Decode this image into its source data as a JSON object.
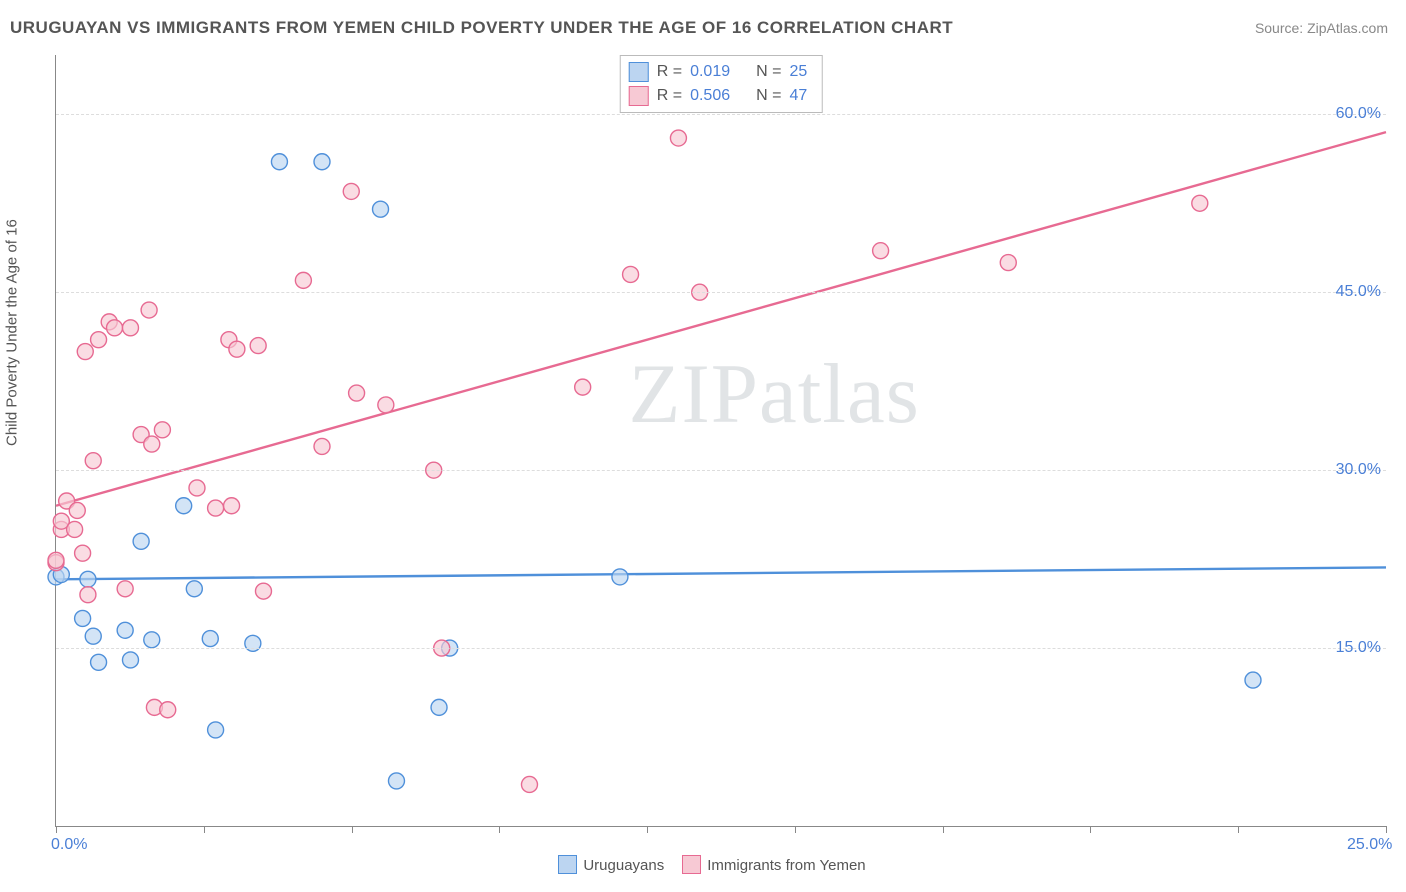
{
  "title": "URUGUAYAN VS IMMIGRANTS FROM YEMEN CHILD POVERTY UNDER THE AGE OF 16 CORRELATION CHART",
  "source_prefix": "Source: ",
  "source_name": "ZipAtlas.com",
  "ylabel": "Child Poverty Under the Age of 16",
  "watermark": "ZIPatlas",
  "chart": {
    "type": "scatter",
    "background_color": "#ffffff",
    "grid_color": "#dddddd",
    "axis_color": "#888888",
    "xlim": [
      0,
      25
    ],
    "ylim": [
      0,
      65
    ],
    "x_ticks": [
      0,
      2.78,
      5.56,
      8.33,
      11.11,
      13.89,
      16.67,
      19.44,
      22.22,
      25
    ],
    "x_tick_labels": {
      "0": "0.0%",
      "25": "25.0%"
    },
    "y_ticks": [
      15,
      30,
      45,
      60
    ],
    "y_tick_labels": [
      "15.0%",
      "30.0%",
      "45.0%",
      "60.0%"
    ],
    "marker_radius": 8,
    "marker_stroke_width": 1.4,
    "trend_line_width": 2.4,
    "series": [
      {
        "id": "uruguayans",
        "label": "Uruguayans",
        "color_fill": "#bcd5f1",
        "color_stroke": "#4f90da",
        "R": "0.019",
        "N": "25",
        "trend": {
          "x1": 0,
          "y1": 20.8,
          "x2": 25,
          "y2": 21.8
        },
        "points": [
          [
            0.0,
            21.0
          ],
          [
            0.1,
            21.2
          ],
          [
            0.5,
            17.5
          ],
          [
            0.6,
            20.8
          ],
          [
            0.7,
            16.0
          ],
          [
            0.8,
            13.8
          ],
          [
            1.3,
            16.5
          ],
          [
            1.4,
            14.0
          ],
          [
            1.8,
            15.7
          ],
          [
            1.6,
            24.0
          ],
          [
            2.4,
            27.0
          ],
          [
            2.6,
            20.0
          ],
          [
            2.9,
            15.8
          ],
          [
            3.0,
            8.1
          ],
          [
            3.7,
            15.4
          ],
          [
            4.2,
            56.0
          ],
          [
            5.0,
            56.0
          ],
          [
            6.1,
            52.0
          ],
          [
            6.4,
            3.8
          ],
          [
            7.2,
            10.0
          ],
          [
            7.4,
            15.0
          ],
          [
            10.6,
            21.0
          ],
          [
            22.5,
            12.3
          ]
        ]
      },
      {
        "id": "yemen",
        "label": "Immigrants from Yemen",
        "color_fill": "#f7c9d4",
        "color_stroke": "#e76a92",
        "R": "0.506",
        "N": "47",
        "trend": {
          "x1": 0,
          "y1": 27.0,
          "x2": 25,
          "y2": 58.5
        },
        "points": [
          [
            0.0,
            22.2
          ],
          [
            0.0,
            22.4
          ],
          [
            0.1,
            25.0
          ],
          [
            0.1,
            25.7
          ],
          [
            0.2,
            27.4
          ],
          [
            0.35,
            25.0
          ],
          [
            0.4,
            26.6
          ],
          [
            0.5,
            23.0
          ],
          [
            0.55,
            40.0
          ],
          [
            0.6,
            19.5
          ],
          [
            0.7,
            30.8
          ],
          [
            0.8,
            41.0
          ],
          [
            1.0,
            42.5
          ],
          [
            1.1,
            42.0
          ],
          [
            1.3,
            20.0
          ],
          [
            1.4,
            42.0
          ],
          [
            1.6,
            33.0
          ],
          [
            1.75,
            43.5
          ],
          [
            1.8,
            32.2
          ],
          [
            1.85,
            10.0
          ],
          [
            2.0,
            33.4
          ],
          [
            2.1,
            9.8
          ],
          [
            2.65,
            28.5
          ],
          [
            3.0,
            26.8
          ],
          [
            3.25,
            41.0
          ],
          [
            3.3,
            27.0
          ],
          [
            3.4,
            40.2
          ],
          [
            3.8,
            40.5
          ],
          [
            3.9,
            19.8
          ],
          [
            4.65,
            46.0
          ],
          [
            5.0,
            32.0
          ],
          [
            5.55,
            53.5
          ],
          [
            5.65,
            36.5
          ],
          [
            6.2,
            35.5
          ],
          [
            7.1,
            30.0
          ],
          [
            7.25,
            15.0
          ],
          [
            8.9,
            3.5
          ],
          [
            9.9,
            37.0
          ],
          [
            10.8,
            46.5
          ],
          [
            11.7,
            58.0
          ],
          [
            12.1,
            45.0
          ],
          [
            15.5,
            48.5
          ],
          [
            17.9,
            47.5
          ],
          [
            21.5,
            52.5
          ]
        ]
      }
    ]
  },
  "legend_labels": {
    "R": "R  =",
    "N": "N  ="
  }
}
